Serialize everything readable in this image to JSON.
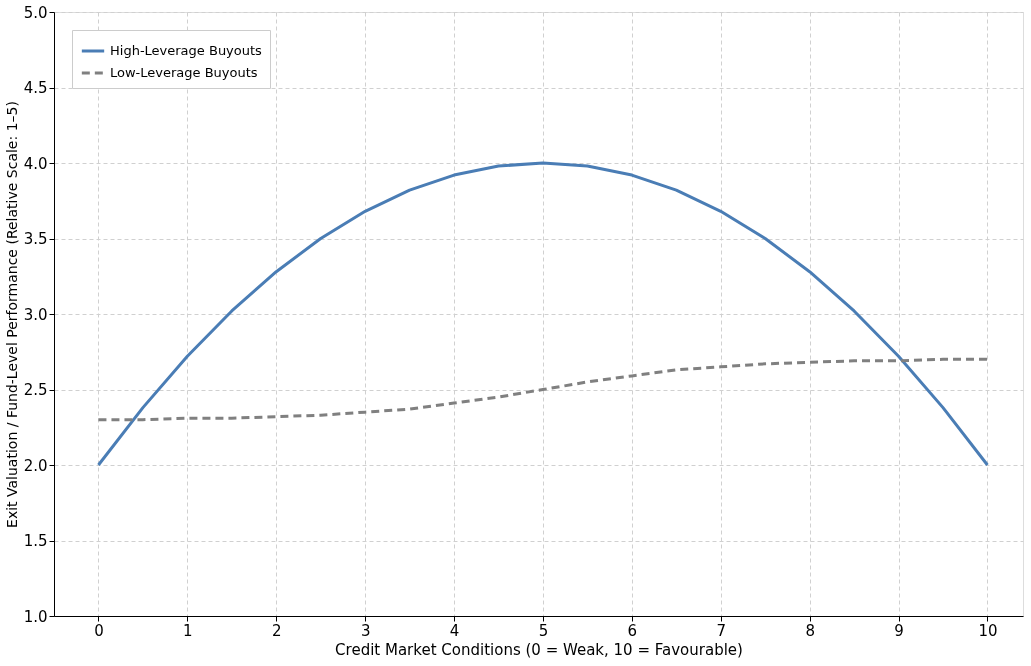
{
  "chart_data": {
    "type": "line",
    "xlabel": "Credit Market Conditions (0 = Weak, 10 = Favourable)",
    "ylabel": "Exit Valuation / Fund-Level Performance (Relative Scale: 1–5)",
    "x": [
      0,
      0.5,
      1,
      1.5,
      2,
      2.5,
      3,
      3.5,
      4,
      4.5,
      5,
      5.5,
      6,
      6.5,
      7,
      7.5,
      8,
      8.5,
      9,
      9.5,
      10
    ],
    "series": [
      {
        "name": "High-Leverage Buyouts",
        "color": "#4a7db5",
        "line_style": "solid",
        "values": [
          2.0,
          2.38,
          2.72,
          3.02,
          3.28,
          3.5,
          3.68,
          3.82,
          3.92,
          3.98,
          4.0,
          3.98,
          3.92,
          3.82,
          3.68,
          3.5,
          3.28,
          3.02,
          2.72,
          2.38,
          2.0
        ]
      },
      {
        "name": "Low-Leverage Buyouts",
        "color": "#808080",
        "line_style": "dashed",
        "values": [
          2.3,
          2.3,
          2.31,
          2.31,
          2.32,
          2.33,
          2.35,
          2.37,
          2.41,
          2.45,
          2.5,
          2.55,
          2.59,
          2.63,
          2.65,
          2.67,
          2.68,
          2.69,
          2.69,
          2.7,
          2.7
        ]
      }
    ],
    "xlim": [
      -0.5,
      10.4
    ],
    "xticks": [
      0,
      1,
      2,
      3,
      4,
      5,
      6,
      7,
      8,
      9,
      10
    ],
    "ylim": [
      1.0,
      5.0
    ],
    "yticks": [
      {
        "value": 1,
        "label": "1.0"
      },
      1.5,
      {
        "value": 2,
        "label": "2.0"
      },
      2.5,
      {
        "value": 3,
        "label": "3.0"
      },
      3.5,
      {
        "value": 4,
        "label": "4.0"
      },
      4.5,
      {
        "value": 5,
        "label": "5.0"
      }
    ],
    "grid": true,
    "legend": "top left",
    "marker": "none"
  }
}
